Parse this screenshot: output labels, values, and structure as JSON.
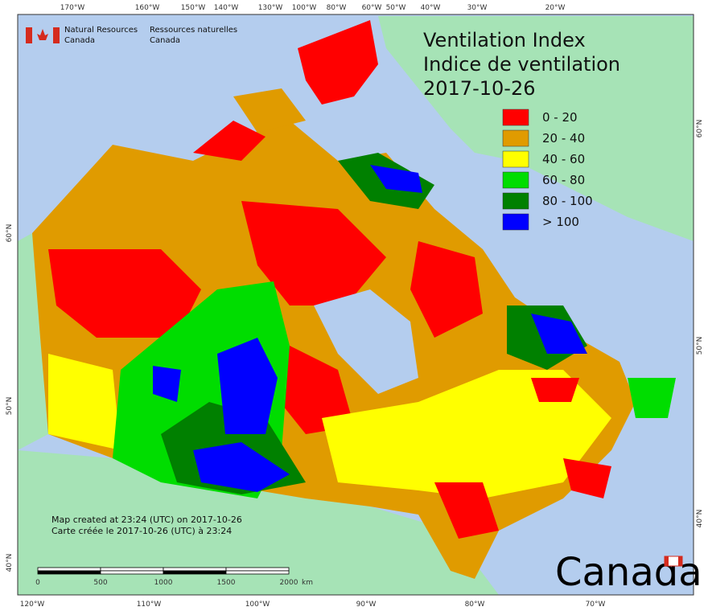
{
  "header": {
    "agency_en": [
      "Natural Resources",
      "Canada"
    ],
    "agency_fr": [
      "Ressources naturelles",
      "Canada"
    ],
    "title": [
      "Ventilation Index",
      "Indice de ventilation",
      "2017-10-26"
    ]
  },
  "legend": [
    {
      "label": "0 - 20",
      "color": "#ff0000"
    },
    {
      "label": "20 - 40",
      "color": "#e09b00"
    },
    {
      "label": "40 - 60",
      "color": "#ffff00"
    },
    {
      "label": "60 - 80",
      "color": "#00dd00"
    },
    {
      "label": "80 - 100",
      "color": "#008000"
    },
    {
      "label": "> 100",
      "color": "#0000ff"
    }
  ],
  "axes": {
    "top": [
      "170°W",
      "160°W",
      "150°W",
      "140°W",
      "130°W",
      "100°W",
      "80°W",
      "60°W",
      "50°W",
      "40°W",
      "30°W",
      "20°W"
    ],
    "bottom": [
      "120°W",
      "110°W",
      "100°W",
      "90°W",
      "80°W",
      "70°W"
    ],
    "left": [
      "60°N",
      "50°N",
      "40°N"
    ],
    "right": [
      "60°N",
      "50°N",
      "40°N"
    ]
  },
  "notes": [
    "Map created at 23:24 (UTC) on 2017-10-26",
    "Carte créée le 2017-10-26 (UTC) à 23:24"
  ],
  "scale_bar": {
    "labels": [
      "0",
      "500",
      "1000",
      "1500",
      "2000"
    ],
    "unit": "km"
  },
  "wordmark": "Canada"
}
